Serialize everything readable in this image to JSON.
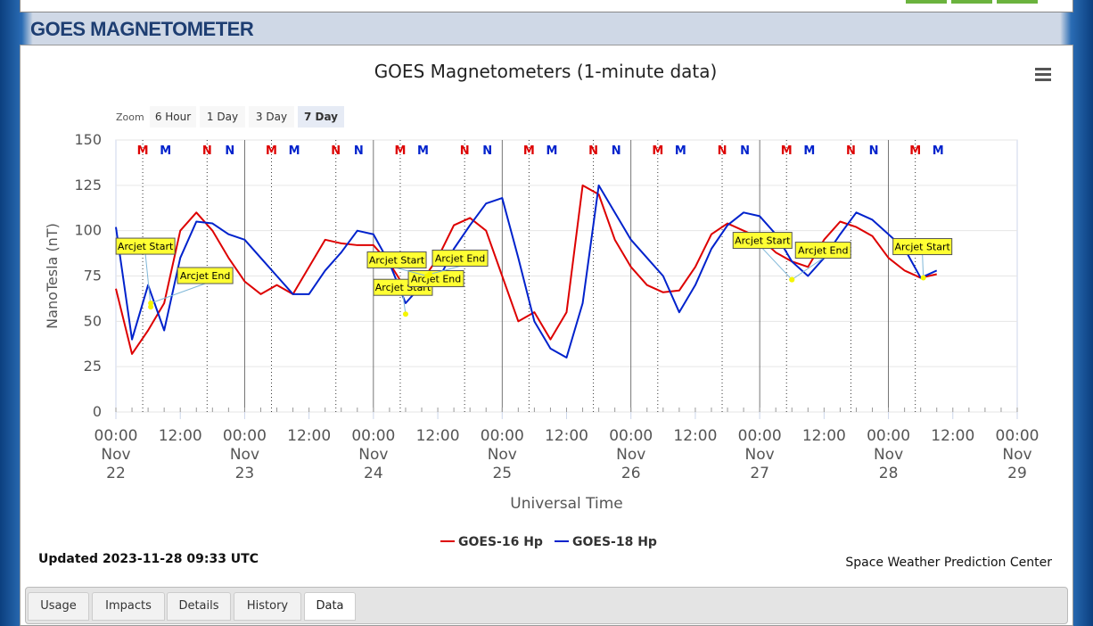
{
  "header": {
    "title": "GOES MAGNETOMETER"
  },
  "zoom": {
    "label": "Zoom",
    "buttons": [
      "6 Hour",
      "1 Day",
      "3 Day",
      "7 Day"
    ],
    "selected": 3
  },
  "chart_data": {
    "type": "line",
    "title": "GOES Magnetometers (1-minute data)",
    "y_label": "NanoTesla (nT)",
    "x_label": "Universal Time",
    "xlim": [
      "Nov 22 00:00",
      "Nov 29 00:00"
    ],
    "xticks": [
      {
        "value": "Nov 22 00:00",
        "label": [
          "00:00",
          "Nov",
          "22"
        ]
      },
      {
        "value": "Nov 22 12:00",
        "label": [
          "12:00"
        ]
      },
      {
        "value": "Nov 23 00:00",
        "label": [
          "00:00",
          "Nov",
          "23"
        ]
      },
      {
        "value": "Nov 23 12:00",
        "label": [
          "12:00"
        ]
      },
      {
        "value": "Nov 24 00:00",
        "label": [
          "00:00",
          "Nov",
          "24"
        ]
      },
      {
        "value": "Nov 24 12:00",
        "label": [
          "12:00"
        ]
      },
      {
        "value": "Nov 25 00:00",
        "label": [
          "00:00",
          "Nov",
          "25"
        ]
      },
      {
        "value": "Nov 25 12:00",
        "label": [
          "12:00"
        ]
      },
      {
        "value": "Nov 26 00:00",
        "label": [
          "00:00",
          "Nov",
          "26"
        ]
      },
      {
        "value": "Nov 26 12:00",
        "label": [
          "12:00"
        ]
      },
      {
        "value": "Nov 27 00:00",
        "label": [
          "00:00",
          "Nov",
          "27"
        ]
      },
      {
        "value": "Nov 27 12:00",
        "label": [
          "12:00"
        ]
      },
      {
        "value": "Nov 28 00:00",
        "label": [
          "00:00",
          "Nov",
          "28"
        ]
      },
      {
        "value": "Nov 28 12:00",
        "label": [
          "12:00"
        ]
      },
      {
        "value": "Nov 29 00:00",
        "label": [
          "00:00",
          "Nov",
          "29"
        ]
      }
    ],
    "ylim": [
      0,
      150
    ],
    "yticks": [
      0,
      25,
      50,
      75,
      100,
      125,
      150
    ],
    "grid": true,
    "x": [
      "Nov 22 00:00",
      "Nov 22 03:00",
      "Nov 22 06:00",
      "Nov 22 09:00",
      "Nov 22 12:00",
      "Nov 22 15:00",
      "Nov 22 18:00",
      "Nov 22 21:00",
      "Nov 23 00:00",
      "Nov 23 03:00",
      "Nov 23 06:00",
      "Nov 23 09:00",
      "Nov 23 12:00",
      "Nov 23 15:00",
      "Nov 23 18:00",
      "Nov 23 21:00",
      "Nov 24 00:00",
      "Nov 24 03:00",
      "Nov 24 06:00",
      "Nov 24 09:00",
      "Nov 24 12:00",
      "Nov 24 15:00",
      "Nov 24 18:00",
      "Nov 24 21:00",
      "Nov 25 00:00",
      "Nov 25 03:00",
      "Nov 25 06:00",
      "Nov 25 09:00",
      "Nov 25 12:00",
      "Nov 25 15:00",
      "Nov 25 18:00",
      "Nov 25 21:00",
      "Nov 26 00:00",
      "Nov 26 03:00",
      "Nov 26 06:00",
      "Nov 26 09:00",
      "Nov 26 12:00",
      "Nov 26 15:00",
      "Nov 26 18:00",
      "Nov 26 21:00",
      "Nov 27 00:00",
      "Nov 27 03:00",
      "Nov 27 06:00",
      "Nov 27 09:00",
      "Nov 27 12:00",
      "Nov 27 15:00",
      "Nov 27 18:00",
      "Nov 27 21:00",
      "Nov 28 00:00",
      "Nov 28 03:00",
      "Nov 28 06:00",
      "Nov 28 09:00"
    ],
    "series": [
      {
        "name": "GOES-16 Hp",
        "color": "#dd0000",
        "values": [
          68,
          32,
          45,
          60,
          100,
          110,
          100,
          85,
          72,
          65,
          70,
          65,
          80,
          95,
          93,
          92,
          92,
          82,
          68,
          72,
          85,
          103,
          107,
          100,
          75,
          50,
          55,
          40,
          55,
          125,
          120,
          95,
          80,
          70,
          66,
          67,
          80,
          98,
          104,
          100,
          96,
          88,
          83,
          80,
          95,
          105,
          102,
          97,
          85,
          78,
          74,
          76
        ]
      },
      {
        "name": "GOES-18 Hp",
        "color": "#0022cc",
        "values": [
          102,
          40,
          70,
          45,
          85,
          105,
          104,
          98,
          95,
          85,
          75,
          65,
          65,
          78,
          88,
          100,
          98,
          82,
          60,
          70,
          72,
          90,
          103,
          115,
          118,
          85,
          50,
          35,
          30,
          60,
          125,
          110,
          95,
          85,
          75,
          55,
          70,
          90,
          103,
          110,
          108,
          98,
          83,
          75,
          85,
          98,
          110,
          106,
          98,
          90,
          74,
          78
        ]
      }
    ],
    "markers": [
      {
        "label": "M",
        "x": "Nov 22 05:00",
        "color": "#dd0000"
      },
      {
        "label": "M",
        "x": "Nov 22 09:15",
        "color": "#0022cc"
      },
      {
        "label": "N",
        "x": "Nov 22 17:00",
        "color": "#dd0000"
      },
      {
        "label": "N",
        "x": "Nov 22 21:15",
        "color": "#0022cc"
      },
      {
        "label": "M",
        "x": "Nov 23 05:00",
        "color": "#dd0000"
      },
      {
        "label": "M",
        "x": "Nov 23 09:15",
        "color": "#0022cc"
      },
      {
        "label": "N",
        "x": "Nov 23 17:00",
        "color": "#dd0000"
      },
      {
        "label": "N",
        "x": "Nov 23 21:15",
        "color": "#0022cc"
      },
      {
        "label": "M",
        "x": "Nov 24 05:00",
        "color": "#dd0000"
      },
      {
        "label": "M",
        "x": "Nov 24 09:15",
        "color": "#0022cc"
      },
      {
        "label": "N",
        "x": "Nov 24 17:00",
        "color": "#dd0000"
      },
      {
        "label": "N",
        "x": "Nov 24 21:15",
        "color": "#0022cc"
      },
      {
        "label": "M",
        "x": "Nov 25 05:00",
        "color": "#dd0000"
      },
      {
        "label": "M",
        "x": "Nov 25 09:15",
        "color": "#0022cc"
      },
      {
        "label": "N",
        "x": "Nov 25 17:00",
        "color": "#dd0000"
      },
      {
        "label": "N",
        "x": "Nov 25 21:15",
        "color": "#0022cc"
      },
      {
        "label": "M",
        "x": "Nov 26 05:00",
        "color": "#dd0000"
      },
      {
        "label": "M",
        "x": "Nov 26 09:15",
        "color": "#0022cc"
      },
      {
        "label": "N",
        "x": "Nov 26 17:00",
        "color": "#dd0000"
      },
      {
        "label": "N",
        "x": "Nov 26 21:15",
        "color": "#0022cc"
      },
      {
        "label": "M",
        "x": "Nov 27 05:00",
        "color": "#dd0000"
      },
      {
        "label": "M",
        "x": "Nov 27 09:15",
        "color": "#0022cc"
      },
      {
        "label": "N",
        "x": "Nov 27 17:00",
        "color": "#dd0000"
      },
      {
        "label": "N",
        "x": "Nov 27 21:15",
        "color": "#0022cc"
      },
      {
        "label": "M",
        "x": "Nov 28 05:00",
        "color": "#dd0000"
      },
      {
        "label": "M",
        "x": "Nov 28 09:15",
        "color": "#0022cc"
      }
    ],
    "annotations": [
      {
        "text": "Arcjet Start",
        "x": "Nov 22 06:30",
        "y": 58
      },
      {
        "text": "Arcjet End",
        "x": "Nov 22 06:30",
        "y": 60
      },
      {
        "text": "Arcjet Start",
        "x": "Nov 24 06:00",
        "y": 54
      },
      {
        "text": "Arcjet End",
        "x": "Nov 24 10:00",
        "y": 75
      },
      {
        "text": "Arcjet Start",
        "x": "Nov 24 10:00",
        "y": 75
      },
      {
        "text": "Arcjet End",
        "x": "Nov 24 10:30",
        "y": 76
      },
      {
        "text": "Arcjet Start",
        "x": "Nov 27 06:00",
        "y": 73
      },
      {
        "text": "Arcjet End",
        "x": "Nov 27 06:00",
        "y": 73
      },
      {
        "text": "Arcjet Start",
        "x": "Nov 28 06:30",
        "y": 74
      }
    ]
  },
  "footer": {
    "updated": "Updated 2023-11-28 09:33 UTC",
    "credit": "Space Weather Prediction Center"
  },
  "tabs": {
    "items": [
      "Usage",
      "Impacts",
      "Details",
      "History",
      "Data"
    ],
    "active": 4
  }
}
